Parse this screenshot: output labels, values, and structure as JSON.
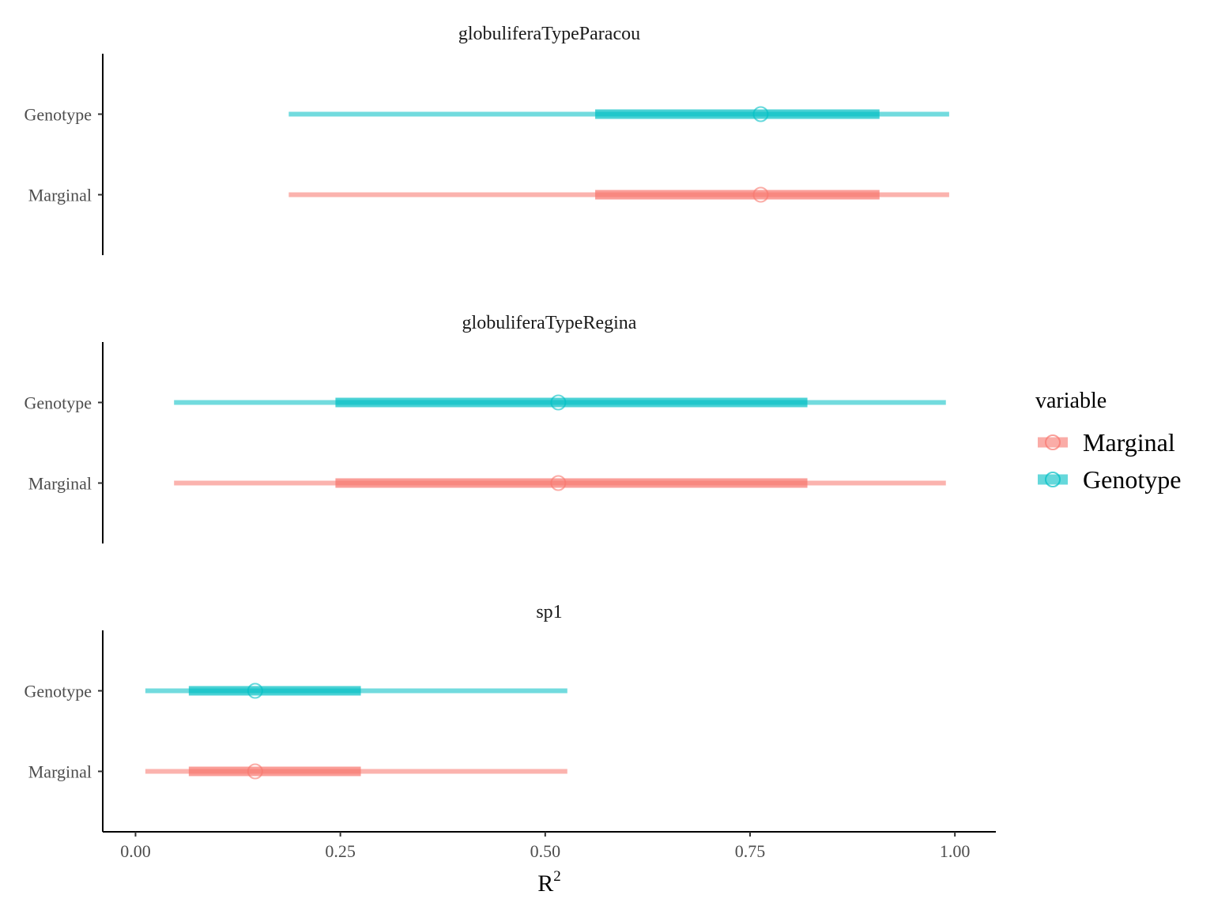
{
  "chart_data": {
    "type": "interval",
    "x": {
      "label": "R",
      "label_superscript": "2",
      "lim": [
        -0.04,
        1.05
      ],
      "ticks": [
        0.0,
        0.25,
        0.5,
        0.75,
        1.0
      ],
      "tick_labels": [
        "0.00",
        "0.25",
        "0.50",
        "0.75",
        "1.00"
      ]
    },
    "legend": {
      "title": "variable",
      "placement": "right",
      "entries": [
        {
          "name": "Marginal",
          "color": "#F8766D"
        },
        {
          "name": "Genotype",
          "color": "#00BFC4"
        }
      ]
    },
    "facets": [
      {
        "title": "globuliferaTypeParacou",
        "rows": [
          {
            "label": "Genotype",
            "series": "Genotype",
            "outer": [
              0.187,
              0.993
            ],
            "inner": [
              0.561,
              0.908
            ],
            "point": 0.763
          },
          {
            "label": "Marginal",
            "series": "Marginal",
            "outer": [
              0.187,
              0.993
            ],
            "inner": [
              0.561,
              0.908
            ],
            "point": 0.763
          }
        ]
      },
      {
        "title": "globuliferaTypeRegina",
        "rows": [
          {
            "label": "Genotype",
            "series": "Genotype",
            "outer": [
              0.047,
              0.989
            ],
            "inner": [
              0.244,
              0.82
            ],
            "point": 0.516
          },
          {
            "label": "Marginal",
            "series": "Marginal",
            "outer": [
              0.047,
              0.989
            ],
            "inner": [
              0.244,
              0.82
            ],
            "point": 0.516
          }
        ]
      },
      {
        "title": "sp1",
        "rows": [
          {
            "label": "Genotype",
            "series": "Genotype",
            "outer": [
              0.012,
              0.527
            ],
            "inner": [
              0.065,
              0.275
            ],
            "point": 0.146
          },
          {
            "label": "Marginal",
            "series": "Marginal",
            "outer": [
              0.012,
              0.527
            ],
            "inner": [
              0.065,
              0.275
            ],
            "point": 0.146
          }
        ]
      }
    ]
  }
}
